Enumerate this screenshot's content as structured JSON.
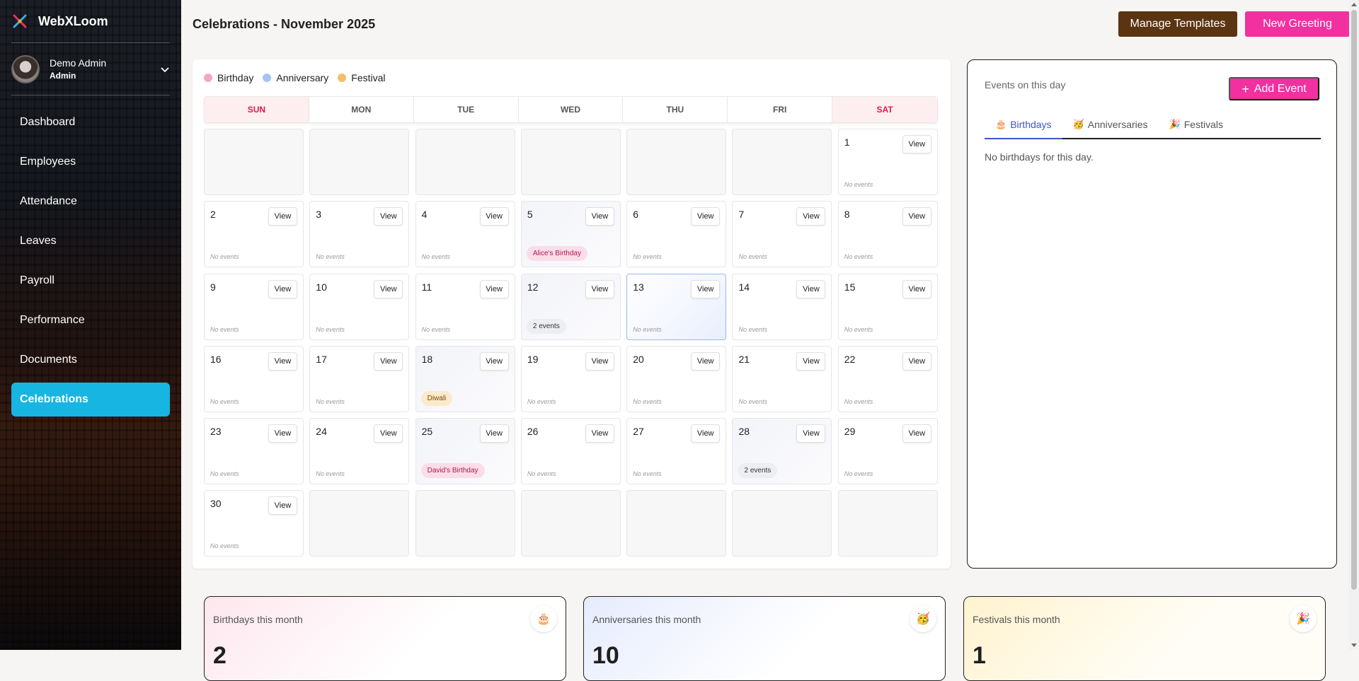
{
  "app": {
    "name": "WebXLoom",
    "logo_icon": "webxloom-logo"
  },
  "user": {
    "name": "Demo Admin",
    "role": "Admin"
  },
  "sidebar": {
    "items": [
      {
        "label": "Dashboard",
        "active": false
      },
      {
        "label": "Employees",
        "active": false
      },
      {
        "label": "Attendance",
        "active": false
      },
      {
        "label": "Leaves",
        "active": false
      },
      {
        "label": "Payroll",
        "active": false
      },
      {
        "label": "Performance",
        "active": false
      },
      {
        "label": "Documents",
        "active": false
      },
      {
        "label": "Celebrations",
        "active": true
      }
    ]
  },
  "header": {
    "title": "Celebrations - November 2025",
    "manage_templates_label": "Manage Templates",
    "new_greeting_label": "New Greeting"
  },
  "legend": [
    {
      "label": "Birthday",
      "color": "#f4a6c8"
    },
    {
      "label": "Anniversary",
      "color": "#a9c2f2"
    },
    {
      "label": "Festival",
      "color": "#f2c068"
    }
  ],
  "calendar": {
    "weekdays": [
      "SUN",
      "MON",
      "TUE",
      "WED",
      "THU",
      "FRI",
      "SAT"
    ],
    "view_label": "View",
    "no_events_label": "No events",
    "selected_day": 13,
    "days": [
      {
        "day": 1
      },
      {
        "day": 2
      },
      {
        "day": 3
      },
      {
        "day": 4
      },
      {
        "day": 5,
        "chip": {
          "text": "Alice's Birthday",
          "kind": "birthday"
        }
      },
      {
        "day": 6
      },
      {
        "day": 7
      },
      {
        "day": 8
      },
      {
        "day": 9
      },
      {
        "day": 10
      },
      {
        "day": 11
      },
      {
        "day": 12,
        "chip": {
          "text": "2 events",
          "kind": "count"
        }
      },
      {
        "day": 13
      },
      {
        "day": 14
      },
      {
        "day": 15
      },
      {
        "day": 16
      },
      {
        "day": 17
      },
      {
        "day": 18,
        "chip": {
          "text": "Diwali",
          "kind": "festival"
        }
      },
      {
        "day": 19
      },
      {
        "day": 20
      },
      {
        "day": 21
      },
      {
        "day": 22
      },
      {
        "day": 23
      },
      {
        "day": 24
      },
      {
        "day": 25,
        "chip": {
          "text": "David's Birthday",
          "kind": "birthday"
        }
      },
      {
        "day": 26
      },
      {
        "day": 27
      },
      {
        "day": 28,
        "chip": {
          "text": "2 events",
          "kind": "count"
        }
      },
      {
        "day": 29
      },
      {
        "day": 30
      }
    ]
  },
  "events_panel": {
    "title": "Events on this day",
    "add_label": "Add Event",
    "tabs": [
      {
        "label": "Birthdays",
        "icon": "cake-icon",
        "glyph": "🎂",
        "active": true
      },
      {
        "label": "Anniversaries",
        "icon": "celebration-face-icon",
        "glyph": "🥳",
        "active": false
      },
      {
        "label": "Festivals",
        "icon": "party-popper-icon",
        "glyph": "🎉",
        "active": false
      }
    ],
    "empty_text": "No birthdays for this day."
  },
  "summary": {
    "birthdays": {
      "label": "Birthdays this month",
      "icon": "cake-icon",
      "glyph": "🎂",
      "value": "2"
    },
    "anniversaries": {
      "label": "Anniversaries this month",
      "icon": "celebration-face-icon",
      "glyph": "🥳",
      "value": "10"
    },
    "festivals": {
      "label": "Festivals this month",
      "icon": "party-popper-icon",
      "glyph": "🎉",
      "value": "1"
    }
  }
}
